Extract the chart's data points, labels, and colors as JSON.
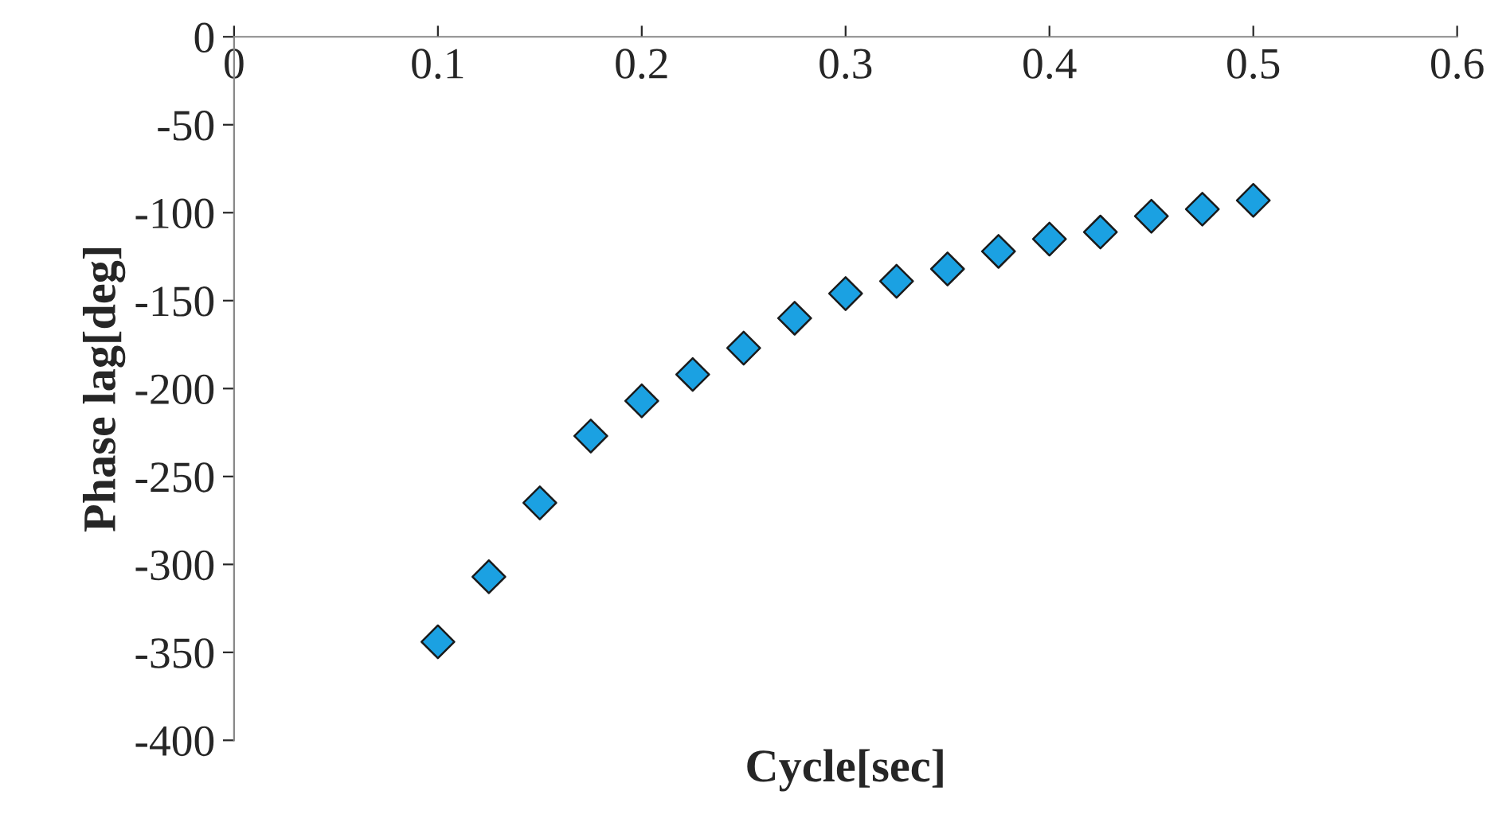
{
  "chart_data": {
    "type": "scatter",
    "xlabel": "Cycle[sec]",
    "ylabel": "Phase lag[deg]",
    "x": [
      0.1,
      0.125,
      0.15,
      0.175,
      0.2,
      0.225,
      0.25,
      0.275,
      0.3,
      0.325,
      0.35,
      0.375,
      0.4,
      0.425,
      0.45,
      0.475,
      0.5
    ],
    "series": [
      {
        "color": "#1ba1e2",
        "values": [
          -344,
          -307,
          -265,
          -227,
          -207,
          -192,
          -177,
          -160,
          -146,
          -139,
          -132,
          -122,
          -115,
          -111,
          -102,
          -98,
          -93
        ]
      }
    ],
    "xlim": [
      0,
      0.6
    ],
    "xticks": [
      0,
      0.1,
      0.2,
      0.3,
      0.4,
      0.5,
      0.6
    ],
    "ylim": [
      -400,
      0
    ],
    "yticks": [
      -400,
      -350,
      -300,
      -250,
      -200,
      -150,
      -100,
      -50,
      0
    ],
    "marker": "diamond",
    "grid": false,
    "legend": false
  }
}
